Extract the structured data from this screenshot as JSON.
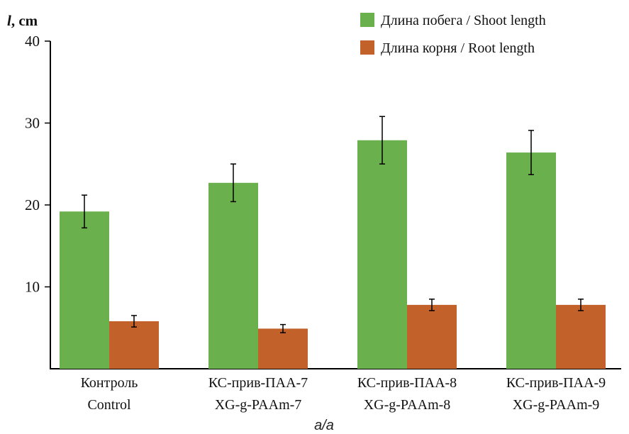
{
  "chart_data": {
    "type": "bar",
    "ylabel_var": "l",
    "ylabel_unit": ", cm",
    "subcaption": "a/a",
    "ylim": [
      0,
      40
    ],
    "yticks": [
      10,
      20,
      30,
      40
    ],
    "legend_position": "top-right",
    "categories": [
      {
        "line1": "Контроль",
        "line2": "Control"
      },
      {
        "line1": "КС-прив-ПАА-7",
        "line2": "XG-g-PAAm-7"
      },
      {
        "line1": "КС-прив-ПАА-8",
        "line2": "XG-g-PAAm-8"
      },
      {
        "line1": "КС-прив-ПАА-9",
        "line2": "XG-g-PAAm-9"
      }
    ],
    "series": [
      {
        "name": "Длина побега / Shoot length",
        "color": "#6ab04c",
        "values": [
          19.2,
          22.7,
          27.9,
          26.4
        ],
        "errors": [
          2.0,
          2.3,
          2.9,
          2.7
        ]
      },
      {
        "name": "Длина корня / Root length",
        "color": "#c2622a",
        "values": [
          5.8,
          4.9,
          7.8,
          7.8
        ],
        "errors": [
          0.7,
          0.5,
          0.7,
          0.7
        ]
      }
    ]
  }
}
